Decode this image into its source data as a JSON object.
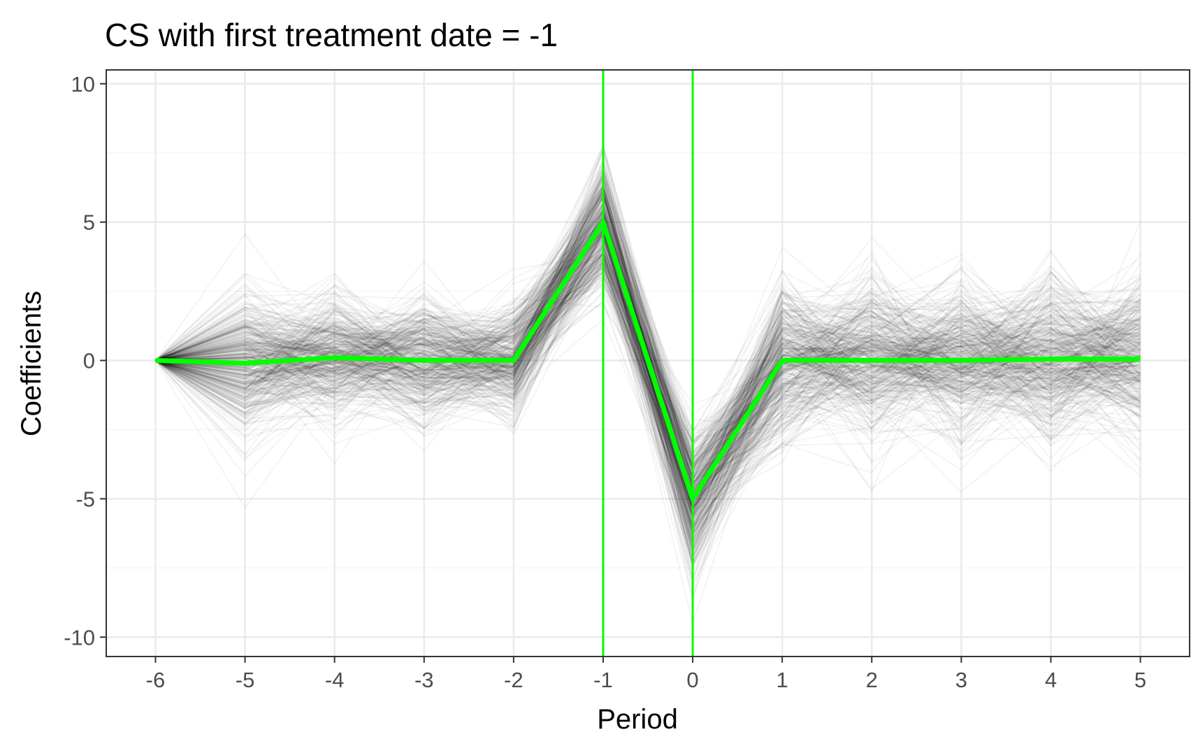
{
  "chart_data": {
    "type": "line",
    "title": "CS with first treatment date = -1",
    "xlabel": "Period",
    "ylabel": "Coefficients",
    "x": [
      -6,
      -5,
      -4,
      -3,
      -2,
      -1,
      0,
      1,
      2,
      3,
      4,
      5
    ],
    "xlim": [
      -6.55,
      5.55
    ],
    "ylim": [
      -10.7,
      10.5
    ],
    "xticks": [
      -6,
      -5,
      -4,
      -3,
      -2,
      -1,
      0,
      1,
      2,
      3,
      4,
      5
    ],
    "yticks": [
      -10,
      -5,
      0,
      5,
      10
    ],
    "x_tick_labels": [
      "-6",
      "-5",
      "-4",
      "-3",
      "-2",
      "-1",
      "0",
      "1",
      "2",
      "3",
      "4",
      "5"
    ],
    "y_tick_labels": [
      "-10",
      "-5",
      "0",
      "5",
      "10"
    ],
    "grid": true,
    "legend": "none",
    "series": [
      {
        "values": [
          0,
          -0.1,
          0.1,
          0,
          0,
          5,
          -5,
          0,
          0,
          0,
          0.05,
          0.05
        ],
        "color": "#00ff00",
        "style": "mean"
      }
    ],
    "simulation_band": {
      "draws": 400,
      "color": "#000000",
      "center": [
        0,
        -0.1,
        0.1,
        0,
        0,
        5,
        -5,
        0,
        0,
        0,
        0.05,
        0.05
      ],
      "spread_sd": [
        0,
        1.3,
        1.1,
        1.1,
        1.0,
        1.2,
        1.2,
        1.4,
        1.4,
        1.4,
        1.4,
        1.4
      ]
    },
    "vertical_lines": [
      {
        "x": -1,
        "color": "#00ff00"
      },
      {
        "x": 0,
        "color": "#00ff00"
      }
    ]
  }
}
